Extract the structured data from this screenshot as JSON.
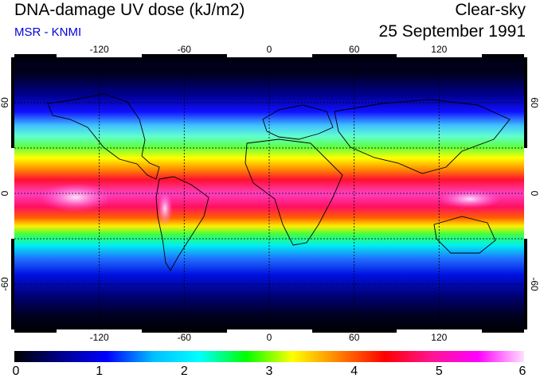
{
  "header": {
    "title": "DNA-damage UV dose (kJ/m2)",
    "credit": "MSR - KNMI",
    "sky_condition": "Clear-sky",
    "date": "25 September 1991"
  },
  "map": {
    "longitude_ticks": [
      "-120",
      "-60",
      "0",
      "60",
      "120"
    ],
    "longitude_values": [
      -120,
      -60,
      0,
      60,
      120
    ],
    "latitude_ticks": [
      "60",
      "0",
      "-60"
    ],
    "latitude_values": [
      60,
      0,
      -60
    ],
    "lon_range": [
      -180,
      180
    ],
    "lat_range": [
      -90,
      90
    ]
  },
  "colorbar": {
    "ticks": [
      "0",
      "1",
      "2",
      "3",
      "4",
      "5",
      "6"
    ],
    "min": 0,
    "max": 6,
    "colors": [
      "#000000",
      "#00008b",
      "#0000ff",
      "#00bfff",
      "#00ffff",
      "#00ff00",
      "#ffff00",
      "#ff8000",
      "#ff0000",
      "#ff1493",
      "#ff00ff",
      "#ffe0ff"
    ]
  }
}
